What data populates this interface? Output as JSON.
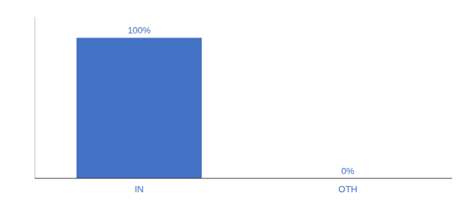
{
  "chart_data": {
    "type": "bar",
    "categories": [
      "IN",
      "OTH"
    ],
    "values": [
      100,
      0
    ],
    "value_labels": [
      "100%",
      "0%"
    ],
    "color": "#4472C4",
    "ylim": [
      0,
      115
    ],
    "tick_labels": "x",
    "data_labels": true,
    "grid": false
  }
}
